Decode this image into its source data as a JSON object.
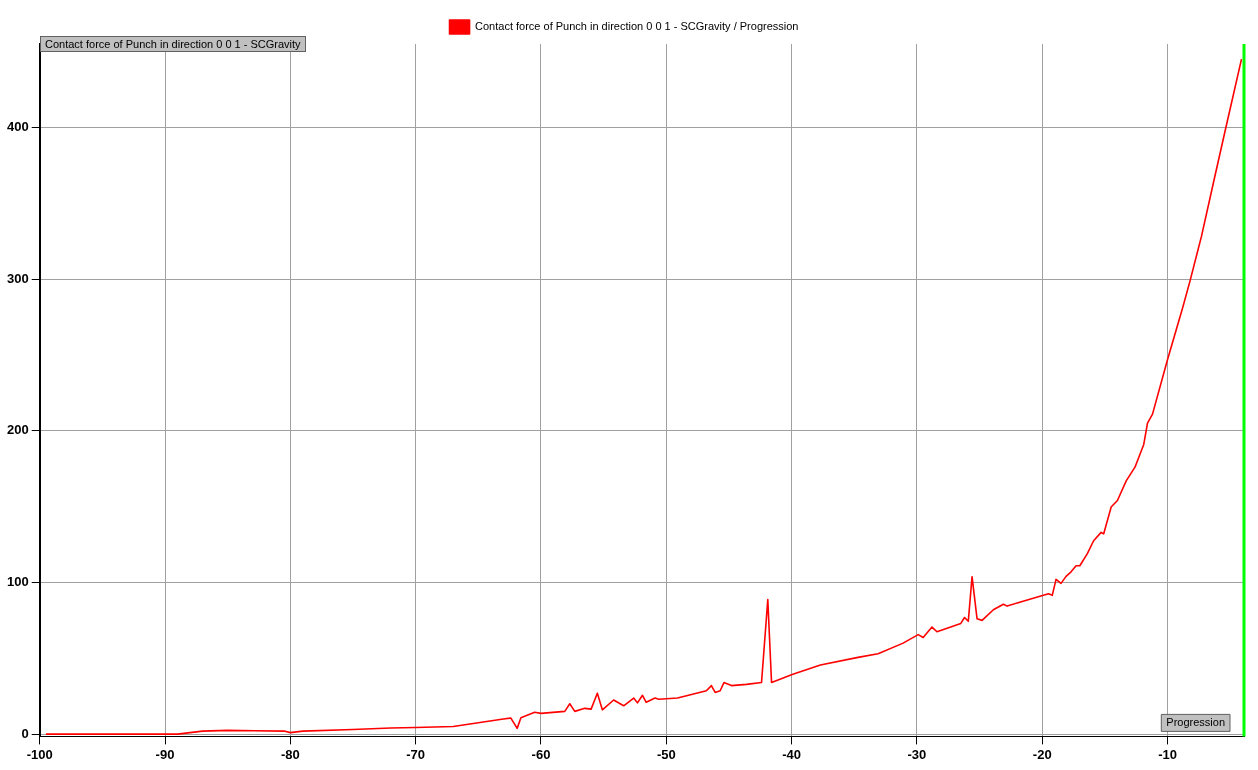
{
  "chart_data": {
    "type": "line",
    "x": [
      -99.5,
      -89,
      -87,
      -85,
      -80.5,
      -80,
      -79,
      -75,
      -72,
      -70,
      -67,
      -65,
      -63,
      -62.4,
      -61.9,
      -61.6,
      -60.5,
      -60,
      -58.1,
      -57.7,
      -57.3,
      -56.5,
      -56,
      -55.5,
      -55.1,
      -54.2,
      -53.4,
      -52.6,
      -52.3,
      -51.9,
      -51.6,
      -50.9,
      -50.6,
      -49.1,
      -46.8,
      -46.4,
      -46.1,
      -45.7,
      -45.4,
      -44.8,
      -43.6,
      -42.4,
      -41.9,
      -41.6,
      -39.9,
      -37.7,
      -34.7,
      -33.1,
      -31.1,
      -29.9,
      -29.5,
      -28.8,
      -28.4,
      -26.5,
      -26.2,
      -25.9,
      -25.6,
      -25.2,
      -24.8,
      -23.9,
      -23.1,
      -22.8,
      -21.6,
      -19.5,
      -19.2,
      -18.9,
      -18.5,
      -18.1,
      -17.7,
      -17.3,
      -17,
      -16.4,
      -15.9,
      -15.3,
      -15.1,
      -14.5,
      -14,
      -13.3,
      -12.6,
      -11.9,
      -11.6,
      -11.2,
      -10,
      -8.8,
      -8.2,
      -7.3,
      -6.3,
      -5.4,
      -4.1
    ],
    "series": [
      {
        "name": "Contact force of Punch in direction 0 0 1 - SCGravity / Progression",
        "color": "#ff0000",
        "values": [
          0,
          0,
          2,
          2.5,
          2,
          1,
          2,
          3,
          4,
          4.4,
          5,
          7.5,
          10,
          10.6,
          3.8,
          10.8,
          14.4,
          13.7,
          15,
          20,
          15,
          17,
          16.5,
          27,
          16,
          22.5,
          18.7,
          23.8,
          20.6,
          25.6,
          21,
          23.8,
          23,
          23.8,
          28.6,
          32,
          27.5,
          28.6,
          34,
          32,
          32.8,
          34,
          88.7,
          34,
          39.4,
          45.6,
          50.6,
          53,
          60,
          65.6,
          63.7,
          70.6,
          67.5,
          73,
          76.9,
          74.4,
          103.8,
          76,
          75,
          82,
          85.6,
          84.4,
          87.5,
          92.5,
          91.5,
          102,
          99.4,
          104,
          107,
          111,
          111,
          119,
          127.5,
          133,
          132,
          149.7,
          154,
          167,
          176,
          191,
          205,
          211,
          247,
          281,
          299,
          328,
          365,
          398,
          445
        ]
      }
    ],
    "xlim": [
      -100,
      -3.9
    ],
    "xticks": [
      -100,
      -90,
      -80,
      -70,
      -60,
      -50,
      -40,
      -30,
      -20,
      -10
    ],
    "ylim": [
      -1.5,
      455
    ],
    "yticks": [
      0,
      100,
      200,
      300,
      400
    ],
    "grid": true,
    "legend": "top",
    "marker": "none",
    "line_style": "solid",
    "ref_lines": [
      {
        "axis": "x",
        "value": -3.9,
        "label": "Progression",
        "color": "#00ff00"
      }
    ],
    "annotations": [
      "Contact force of Punch in direction 0 0 1 - SCGravity"
    ]
  }
}
